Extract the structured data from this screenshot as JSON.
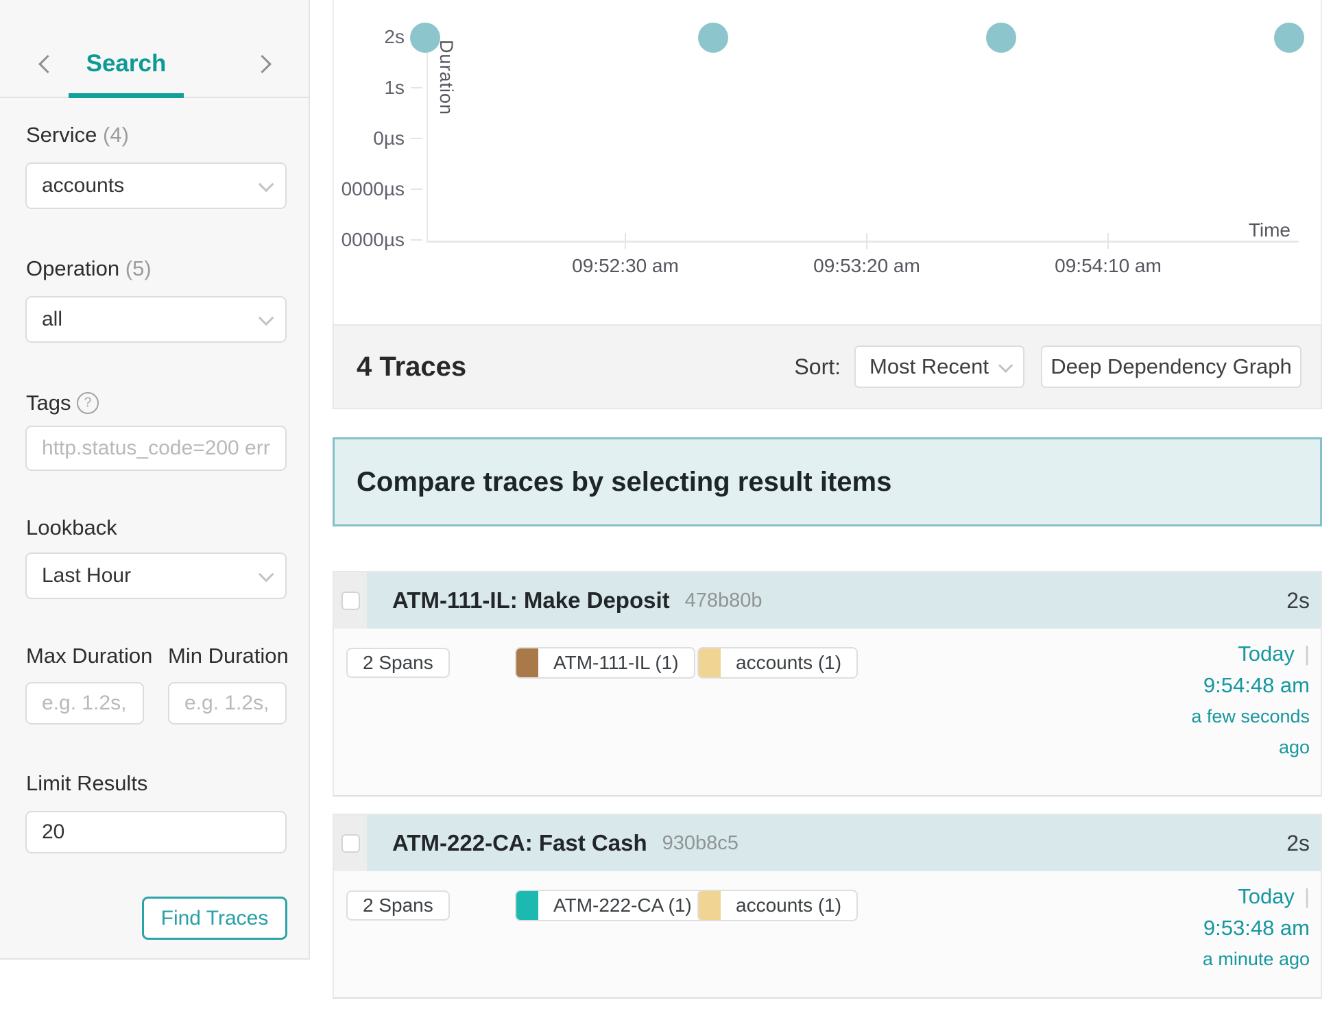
{
  "sidebar": {
    "tab_label": "Search",
    "service": {
      "label": "Service",
      "count": "(4)",
      "value": "accounts"
    },
    "operation": {
      "label": "Operation",
      "count": "(5)",
      "value": "all"
    },
    "tags": {
      "label": "Tags",
      "help_icon": "?",
      "placeholder": "http.status_code=200 err"
    },
    "lookback": {
      "label": "Lookback",
      "value": "Last Hour"
    },
    "max_duration": {
      "label": "Max Duration",
      "placeholder": "e.g. 1.2s,"
    },
    "min_duration": {
      "label": "Min Duration",
      "placeholder": "e.g. 1.2s,"
    },
    "limit": {
      "label": "Limit Results",
      "value": "20"
    },
    "find_button_label": "Find Traces"
  },
  "chart_data": {
    "type": "scatter",
    "title": "",
    "xlabel": "Time",
    "ylabel": "Duration",
    "x_tick_labels": [
      "09:52:30 am",
      "09:53:20 am",
      "09:54:10 am"
    ],
    "y_tick_labels": [
      "2s",
      "1s",
      "0µs",
      "0000µs",
      "0000µs"
    ],
    "points": [
      {
        "time": "9:51:48 am",
        "duration": "2s"
      },
      {
        "time": "9:52:48 am",
        "duration": "2s"
      },
      {
        "time": "9:53:48 am",
        "duration": "2s"
      },
      {
        "time": "9:54:48 am",
        "duration": "2s"
      }
    ],
    "dot_color": "#8cc6cc",
    "grid": false,
    "legend": false
  },
  "results_bar": {
    "count_label": "4 Traces",
    "sort_label": "Sort:",
    "sort_value": "Most Recent",
    "ddg_button_label": "Deep Dependency Graph"
  },
  "banner": {
    "text": "Compare traces by selecting result items"
  },
  "misc": {
    "pipe": "|"
  },
  "traces": [
    {
      "title": "ATM-111-IL: Make Deposit",
      "trace_id": "478b80b",
      "duration": "2s",
      "spans_label": "2 Spans",
      "services": [
        {
          "name": "ATM-111-IL (1)",
          "color": "#a9794a"
        },
        {
          "name": "accounts (1)",
          "color": "#f0d494"
        }
      ],
      "date": "Today",
      "time": "9:54:48 am",
      "relative_lines": [
        "a few seconds",
        "ago"
      ]
    },
    {
      "title": "ATM-222-CA: Fast Cash",
      "trace_id": "930b8c5",
      "duration": "2s",
      "spans_label": "2 Spans",
      "services": [
        {
          "name": "ATM-222-CA (1)",
          "color": "#1cb9b0"
        },
        {
          "name": "accounts (1)",
          "color": "#f0d494"
        }
      ],
      "date": "Today",
      "time": "9:53:48 am",
      "relative_lines": [
        "a minute ago"
      ]
    }
  ]
}
